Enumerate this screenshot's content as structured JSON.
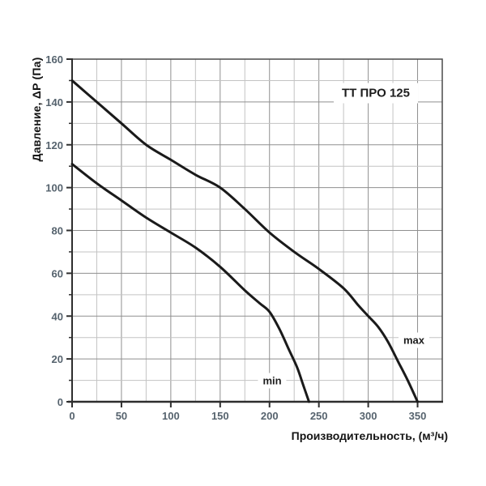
{
  "chart_data": {
    "type": "line",
    "title": "ТТ ПРО 125",
    "xlabel": "Производительность, (м³/ч)",
    "ylabel": "Давление, ΔP (Па)",
    "xlim": [
      0,
      375
    ],
    "ylim": [
      0,
      160
    ],
    "x_tick_labels": [
      0,
      50,
      100,
      150,
      200,
      250,
      300,
      350
    ],
    "x_grid_step": 25,
    "y_tick_labels": [
      0,
      20,
      40,
      60,
      80,
      100,
      120,
      140,
      160
    ],
    "y_grid_step": 10,
    "grid": true,
    "legend_position": "inline-annotations",
    "series": [
      {
        "name": "min",
        "points": [
          [
            0,
            111
          ],
          [
            25,
            102
          ],
          [
            50,
            94
          ],
          [
            75,
            86
          ],
          [
            100,
            79
          ],
          [
            125,
            72
          ],
          [
            150,
            63
          ],
          [
            175,
            52
          ],
          [
            190,
            46
          ],
          [
            200,
            42
          ],
          [
            210,
            34
          ],
          [
            220,
            24
          ],
          [
            228,
            16
          ],
          [
            234,
            8
          ],
          [
            240,
            0
          ]
        ]
      },
      {
        "name": "max",
        "points": [
          [
            0,
            150
          ],
          [
            25,
            140
          ],
          [
            50,
            130
          ],
          [
            75,
            120
          ],
          [
            100,
            113
          ],
          [
            125,
            106
          ],
          [
            150,
            100
          ],
          [
            175,
            90
          ],
          [
            200,
            79
          ],
          [
            225,
            70
          ],
          [
            250,
            62
          ],
          [
            275,
            53
          ],
          [
            290,
            45
          ],
          [
            300,
            40
          ],
          [
            310,
            35
          ],
          [
            320,
            28
          ],
          [
            330,
            19
          ],
          [
            340,
            10
          ],
          [
            350,
            0
          ]
        ]
      }
    ],
    "colors": {
      "curve": "#1a1a1a",
      "grid_major": "#8f8f8f",
      "grid_minor": "#c3c3c3",
      "border": "#4a4a4a",
      "axis": "#2e2e2e",
      "tick_label": "#56636e",
      "text": "#141414"
    }
  }
}
